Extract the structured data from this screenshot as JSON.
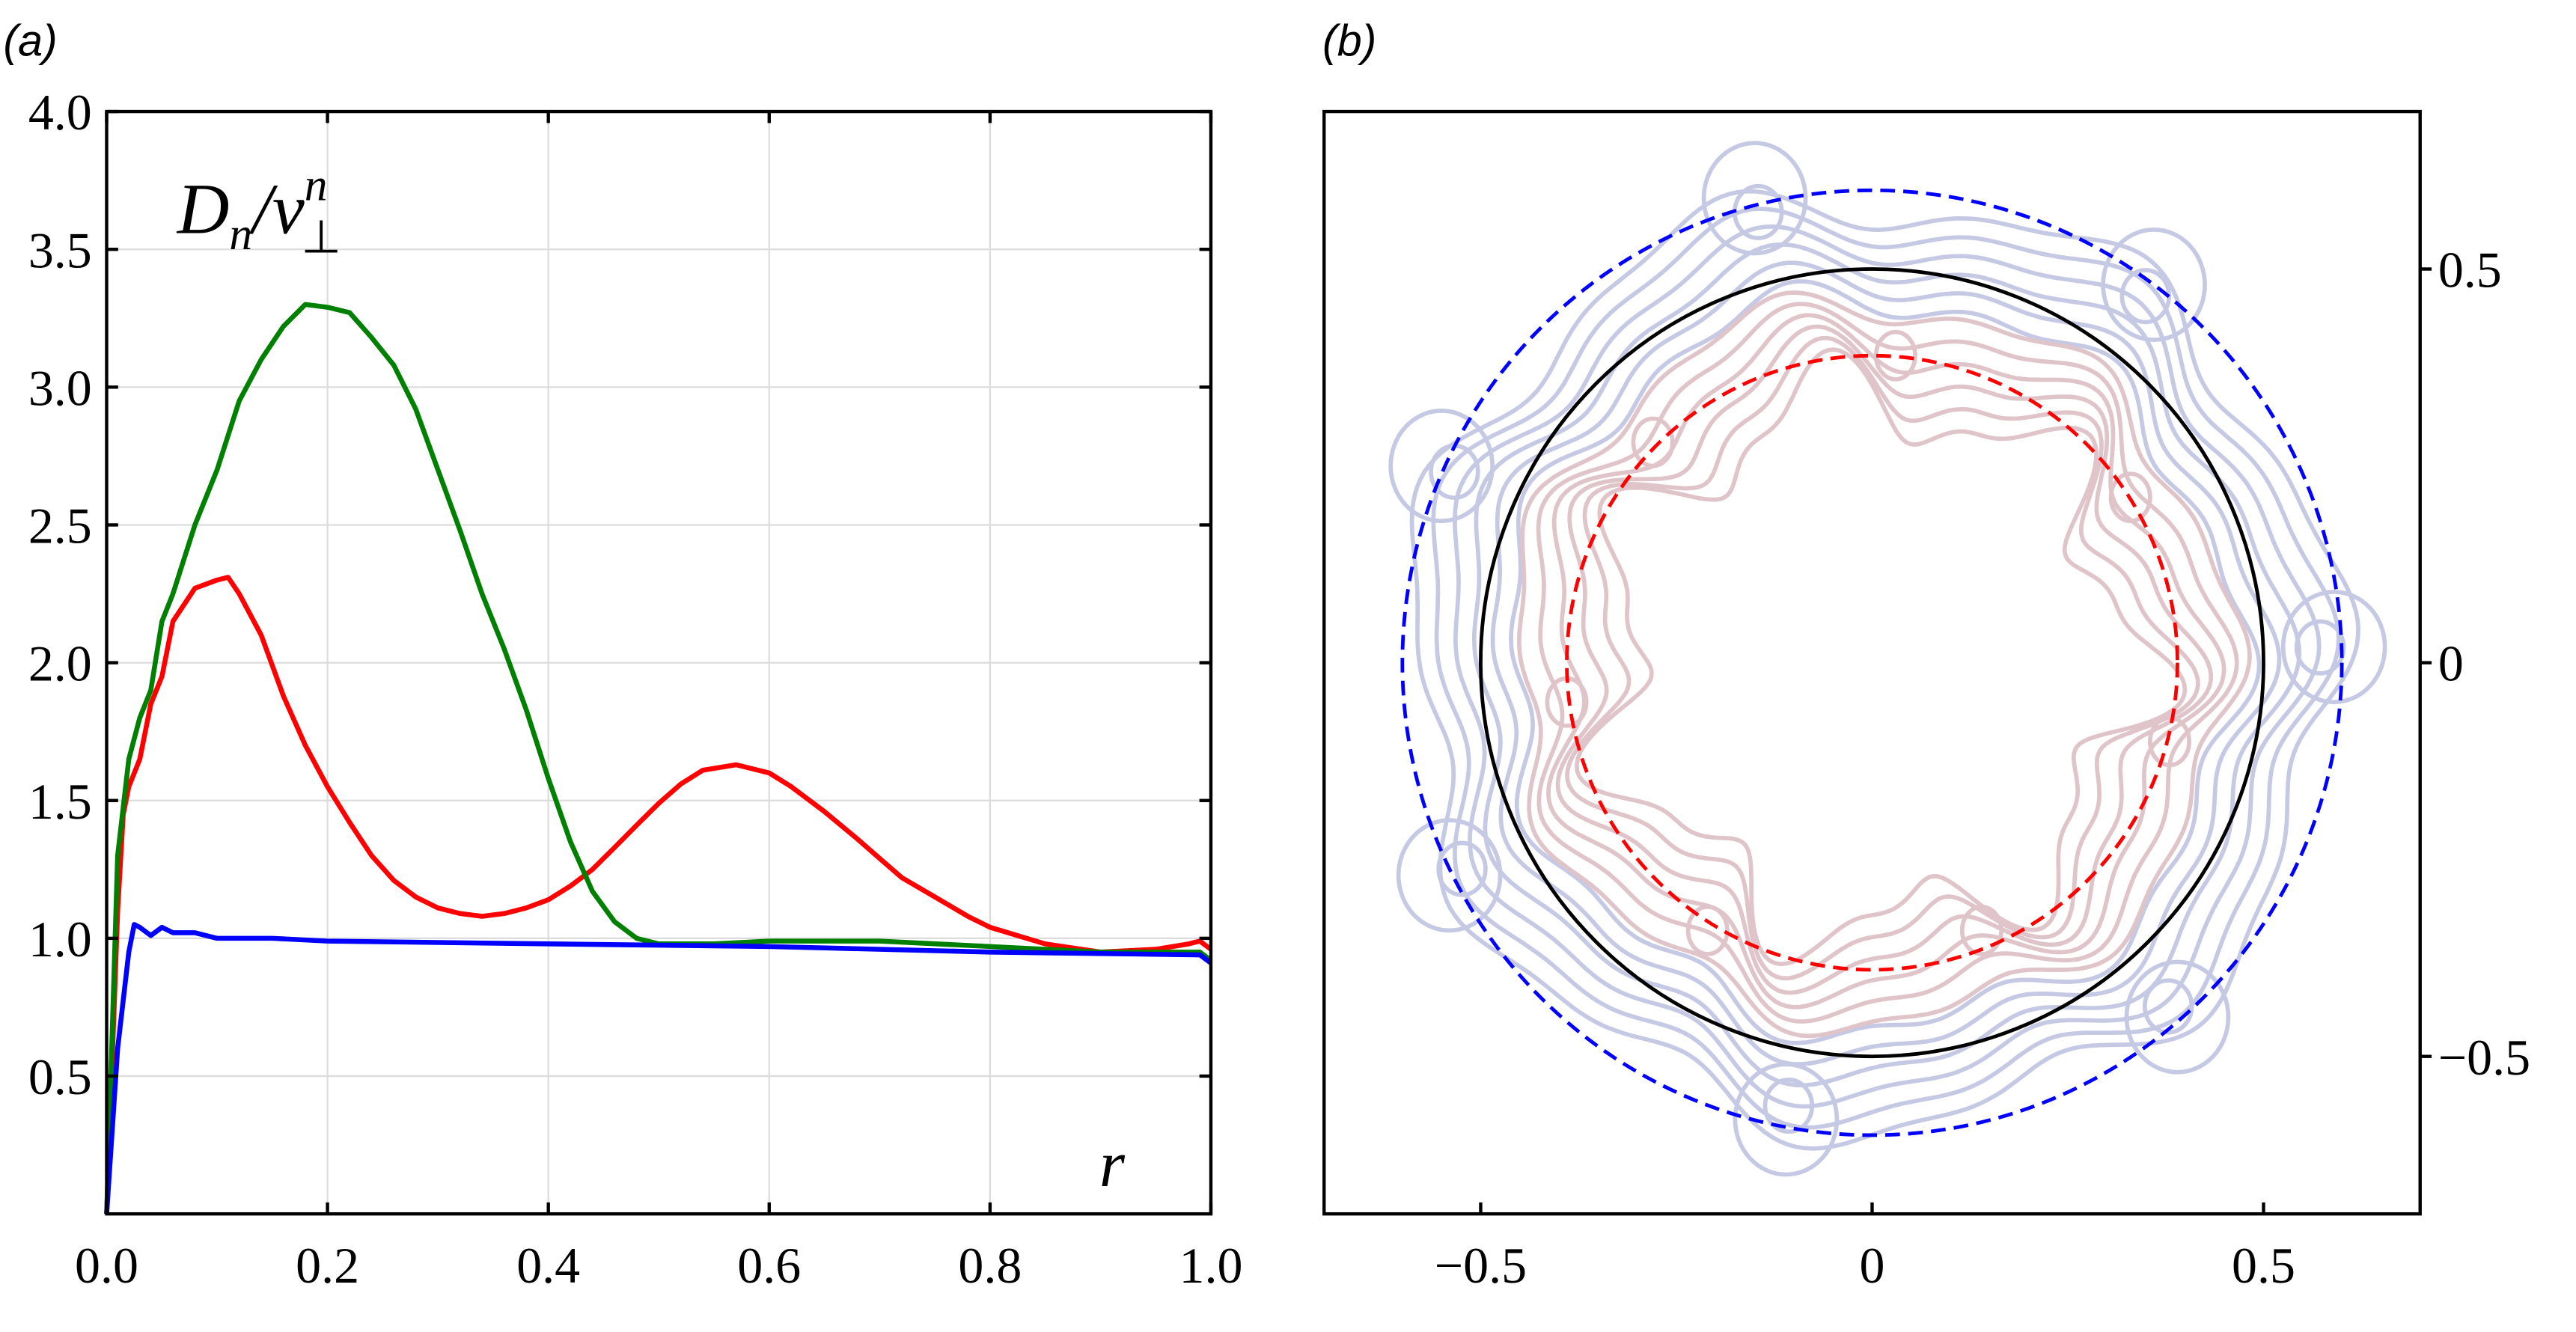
{
  "chart_data": [
    {
      "type": "line",
      "panel_label": "(a)",
      "xlabel": "r",
      "ylabel": {
        "base": "D",
        "sub": "n",
        "slash": "/ν",
        "sup": "n",
        "sub2": "⊥"
      },
      "xlim": [
        0,
        1
      ],
      "ylim": [
        0,
        4
      ],
      "grid": true,
      "xticks": [
        "0.0",
        "0.2",
        "0.4",
        "0.6",
        "0.8",
        "1.0"
      ],
      "xtick_values": [
        0,
        0.2,
        0.4,
        0.6,
        0.8,
        1.0
      ],
      "yticks": [
        "0.5",
        "1.0",
        "1.5",
        "2.0",
        "2.5",
        "3.0",
        "3.5",
        "4.0"
      ],
      "ytick_values": [
        0.5,
        1.0,
        1.5,
        2.0,
        2.5,
        3.0,
        3.5,
        4.0
      ],
      "series": [
        {
          "color": "#ff0000",
          "x": [
            0,
            0.01,
            0.015,
            0.02,
            0.03,
            0.04,
            0.05,
            0.06,
            0.08,
            0.1,
            0.11,
            0.12,
            0.14,
            0.16,
            0.18,
            0.2,
            0.22,
            0.24,
            0.26,
            0.28,
            0.3,
            0.32,
            0.34,
            0.36,
            0.38,
            0.4,
            0.42,
            0.44,
            0.46,
            0.48,
            0.5,
            0.52,
            0.54,
            0.57,
            0.6,
            0.62,
            0.65,
            0.68,
            0.7,
            0.72,
            0.75,
            0.78,
            0.8,
            0.85,
            0.9,
            0.95,
            0.98,
            0.99,
            1.0
          ],
          "y": [
            0,
            1.1,
            1.45,
            1.55,
            1.65,
            1.85,
            1.95,
            2.15,
            2.27,
            2.3,
            2.31,
            2.25,
            2.1,
            1.88,
            1.7,
            1.55,
            1.42,
            1.3,
            1.21,
            1.15,
            1.11,
            1.09,
            1.08,
            1.09,
            1.11,
            1.14,
            1.19,
            1.25,
            1.33,
            1.41,
            1.49,
            1.56,
            1.61,
            1.63,
            1.6,
            1.55,
            1.46,
            1.36,
            1.29,
            1.22,
            1.15,
            1.08,
            1.04,
            0.98,
            0.95,
            0.96,
            0.98,
            0.99,
            0.96
          ]
        },
        {
          "color": "#008000",
          "x": [
            0,
            0.01,
            0.02,
            0.03,
            0.04,
            0.05,
            0.06,
            0.08,
            0.1,
            0.12,
            0.14,
            0.16,
            0.18,
            0.2,
            0.22,
            0.24,
            0.26,
            0.28,
            0.3,
            0.32,
            0.34,
            0.36,
            0.38,
            0.4,
            0.42,
            0.44,
            0.46,
            0.48,
            0.5,
            0.55,
            0.6,
            0.65,
            0.7,
            0.8,
            0.9,
            0.99,
            1.0
          ],
          "y": [
            0,
            1.3,
            1.65,
            1.8,
            1.9,
            2.15,
            2.25,
            2.5,
            2.7,
            2.95,
            3.1,
            3.22,
            3.3,
            3.29,
            3.27,
            3.18,
            3.08,
            2.92,
            2.7,
            2.48,
            2.25,
            2.05,
            1.83,
            1.58,
            1.35,
            1.17,
            1.06,
            1.0,
            0.98,
            0.98,
            0.99,
            0.99,
            0.99,
            0.97,
            0.95,
            0.95,
            0.92
          ]
        },
        {
          "color": "#0000ff",
          "x": [
            0,
            0.01,
            0.02,
            0.025,
            0.03,
            0.04,
            0.05,
            0.06,
            0.08,
            0.1,
            0.15,
            0.2,
            0.4,
            0.6,
            0.8,
            0.99,
            1.0
          ],
          "y": [
            0,
            0.6,
            0.95,
            1.05,
            1.04,
            1.01,
            1.04,
            1.02,
            1.02,
            1.0,
            1.0,
            0.99,
            0.98,
            0.97,
            0.95,
            0.94,
            0.91
          ]
        }
      ]
    },
    {
      "type": "contour",
      "panel_label": "(b)",
      "xlim": [
        -0.7,
        0.7
      ],
      "ylim": [
        -0.7,
        0.7
      ],
      "grid": false,
      "xticks": [
        "−0.5",
        "0",
        "0.5"
      ],
      "xtick_values": [
        -0.5,
        0,
        0.5
      ],
      "yticks": [
        "−0.5",
        "0",
        "0.5"
      ],
      "ytick_values": [
        -0.5,
        0,
        0.5
      ],
      "ytick_side": "right",
      "circles": [
        {
          "radius": 0.5,
          "style": "solid",
          "color": "#000000"
        },
        {
          "radius": 0.39,
          "style": "dashed",
          "color": "#ff0000"
        },
        {
          "radius": 0.6,
          "style": "dashed",
          "color": "#0000ff"
        }
      ],
      "contour_colors": {
        "outer": "#c6c9e3",
        "inner": "#dfc5c9"
      },
      "azimuthal_mode": 7,
      "vortex_centers": [
        [
          -0.15,
          0.59
        ],
        [
          0.36,
          0.48
        ],
        [
          0.59,
          0.02
        ],
        [
          0.39,
          -0.45
        ],
        [
          -0.11,
          -0.58
        ],
        [
          -0.54,
          -0.27
        ],
        [
          -0.55,
          0.25
        ]
      ],
      "inner_lobe_centers": [
        [
          0.03,
          0.39
        ],
        [
          -0.28,
          0.28
        ],
        [
          0.33,
          0.21
        ],
        [
          -0.39,
          -0.05
        ],
        [
          0.38,
          -0.1
        ],
        [
          -0.21,
          -0.34
        ],
        [
          0.14,
          -0.34
        ]
      ]
    }
  ]
}
